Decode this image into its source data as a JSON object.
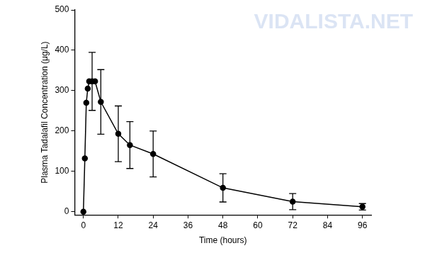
{
  "chart_data": {
    "type": "line",
    "x_label": "Time (hours)",
    "y_label": "Plasma Tadalafil Concentration (μg/L)",
    "annotations": [
      "VIDALISTA.NET"
    ],
    "x": [
      0,
      0.5,
      1,
      1.5,
      2,
      3,
      4,
      6,
      12,
      16,
      24,
      48,
      72,
      96
    ],
    "values": [
      0,
      132,
      270,
      305,
      323,
      323,
      323,
      272,
      193,
      165,
      143,
      59,
      25,
      12
    ],
    "errors": [
      null,
      null,
      null,
      null,
      null,
      72,
      null,
      80,
      69,
      58,
      57,
      35,
      20,
      8
    ],
    "color": "#000000",
    "marker": "circle",
    "line_style": "solid",
    "xlim": [
      -3,
      99
    ],
    "xticks": [
      0,
      12,
      24,
      36,
      48,
      60,
      72,
      84,
      96
    ],
    "ylim": [
      -8,
      500
    ],
    "yticks": [
      0,
      100,
      200,
      300,
      400,
      500
    ],
    "grid": false
  }
}
